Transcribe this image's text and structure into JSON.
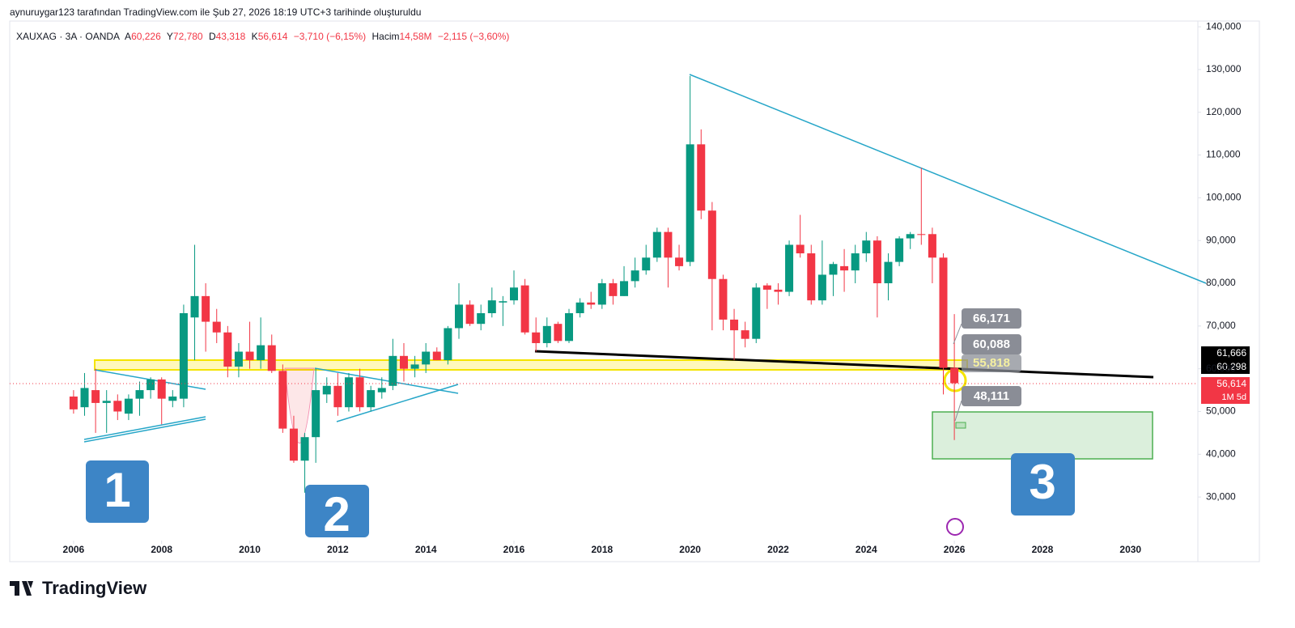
{
  "chart_data": {
    "type": "candlestick",
    "caption": "aynuruygar123 tarafından TradingView.com ile Şub 27, 2026 18:19 UTC+3 tarihinde oluşturuldu",
    "header": {
      "symbol": "XAUXAG · 3A · OANDA",
      "open_key": "A",
      "open": "60,226",
      "high_key": "Y",
      "high": "72,780",
      "low_key": "D",
      "low": "43,318",
      "close_key": "K",
      "close": "56,614",
      "change": "−3,710 (−6,15%)",
      "volume_key": "Hacim",
      "volume": "14,58M",
      "volume_change": "−2,115 (−3,60%)"
    },
    "x": [
      2006,
      2006.25,
      2006.5,
      2006.75,
      2007,
      2007.25,
      2007.5,
      2007.75,
      2008,
      2008.25,
      2008.5,
      2008.75,
      2009,
      2009.25,
      2009.5,
      2009.75,
      2010,
      2010.25,
      2010.5,
      2010.75,
      2011,
      2011.25,
      2011.5,
      2011.75,
      2012,
      2012.25,
      2012.5,
      2012.75,
      2013,
      2013.25,
      2013.5,
      2013.75,
      2014,
      2014.25,
      2014.5,
      2014.75,
      2015,
      2015.25,
      2015.5,
      2015.75,
      2016,
      2016.25,
      2016.5,
      2016.75,
      2017,
      2017.25,
      2017.5,
      2017.75,
      2018,
      2018.25,
      2018.5,
      2018.75,
      2019,
      2019.25,
      2019.5,
      2019.75,
      2020,
      2020.25,
      2020.5,
      2020.75,
      2021,
      2021.25,
      2021.5,
      2021.75,
      2022,
      2022.25,
      2022.5,
      2022.75,
      2023,
      2023.25,
      2023.5,
      2023.75,
      2024,
      2024.25,
      2024.5,
      2024.75,
      2025,
      2025.25,
      2025.5,
      2025.75,
      2026
    ],
    "open": [
      53.5,
      51,
      55,
      52,
      52.5,
      49.5,
      53,
      55,
      57.5,
      52.5,
      53,
      72,
      77,
      71,
      68.5,
      60.5,
      64,
      62,
      65.5,
      59.5,
      46,
      38.5,
      44,
      54,
      56,
      51,
      58,
      51,
      54.5,
      56,
      63,
      60,
      61,
      64,
      62,
      69.5,
      75,
      70.5,
      73,
      75.5,
      76,
      79.5,
      68.5,
      66,
      70.5,
      66.5,
      73,
      75.5,
      75,
      80,
      77,
      80.5,
      83,
      86,
      92,
      86,
      85,
      112.5,
      97,
      81,
      71.5,
      69,
      67,
      79.5,
      78.5,
      78,
      89,
      87,
      76,
      82,
      84,
      83,
      87,
      90,
      80,
      85,
      90.5,
      91.5,
      91.5,
      86,
      60.226
    ],
    "high": [
      55,
      59,
      60,
      55,
      54,
      54,
      57,
      58,
      58,
      55,
      75,
      89,
      80,
      74,
      70,
      66,
      71,
      72,
      68,
      61,
      49,
      45,
      60,
      58,
      59,
      59,
      60,
      56,
      58,
      67,
      66,
      63,
      66,
      65,
      70,
      80,
      76,
      75,
      79,
      77,
      83,
      81,
      72,
      72,
      71,
      74,
      76.5,
      78,
      81,
      81,
      84,
      86,
      89,
      93,
      93,
      89,
      128.5,
      116,
      99,
      82,
      74,
      71,
      80,
      80,
      80,
      90,
      96,
      89,
      90,
      85,
      88,
      89,
      92,
      91,
      87,
      91,
      92,
      107,
      93,
      87,
      72.78
    ],
    "low": [
      49.5,
      49,
      45,
      45,
      48,
      48,
      49,
      53,
      47,
      51,
      51,
      62,
      64,
      66,
      58,
      58,
      60,
      60,
      59,
      45,
      38,
      31,
      38,
      52,
      49,
      50,
      50,
      50,
      53,
      55,
      57,
      58,
      59,
      62,
      61,
      67,
      70,
      69,
      72,
      70,
      75,
      68,
      64,
      65,
      66,
      66,
      72,
      74,
      74,
      75,
      77,
      79,
      82,
      85,
      79,
      83,
      84,
      95,
      69,
      69,
      62,
      65,
      66,
      74,
      75,
      77,
      86,
      75,
      75,
      77,
      78,
      80,
      85,
      72,
      76,
      84,
      88,
      89,
      80,
      54,
      43.318
    ],
    "close": [
      50.5,
      55.5,
      52,
      52.5,
      50,
      53,
      55,
      57.5,
      53,
      53.5,
      73,
      77,
      71,
      68.5,
      60.5,
      64,
      62,
      65.5,
      59.5,
      46,
      38.5,
      44,
      55,
      56,
      51,
      58,
      51,
      55,
      55.5,
      63,
      60,
      61,
      64,
      62,
      69.5,
      75,
      70.5,
      73,
      76,
      75.8,
      79,
      68.5,
      66,
      70,
      66.5,
      73,
      75.5,
      75,
      80,
      77,
      80.5,
      83,
      86,
      92,
      86,
      84,
      112.5,
      97,
      81,
      71.5,
      69,
      67,
      79,
      78.5,
      78,
      89,
      87,
      76,
      82,
      84.5,
      83,
      87,
      90,
      80,
      85,
      90.5,
      91.5,
      91.3,
      86,
      60.2,
      56.614
    ],
    "up_color": "#089981",
    "down_color": "#f23645",
    "xlim": [
      2004.55,
      2031.53
    ],
    "xticks": [
      2006,
      2008,
      2010,
      2012,
      2014,
      2016,
      2018,
      2020,
      2022,
      2024,
      2026,
      2028,
      2030
    ],
    "ylim": [
      19.8,
      142.1
    ],
    "yticks": [
      {
        "value": 30,
        "label": "30,000"
      },
      {
        "value": 40,
        "label": "40,000"
      },
      {
        "value": 50,
        "label": "50,000"
      },
      {
        "value": 60,
        "label": "60,000"
      },
      {
        "value": 70,
        "label": "70,000"
      },
      {
        "value": 80,
        "label": "80,000"
      },
      {
        "value": 90,
        "label": "90,000"
      },
      {
        "value": 100,
        "label": "100,000"
      },
      {
        "value": 110,
        "label": "110,000"
      },
      {
        "value": 120,
        "label": "120,000"
      },
      {
        "value": 130,
        "label": "130,000"
      },
      {
        "value": 140,
        "label": "140,000"
      }
    ],
    "grid": false,
    "annotations": [
      "1",
      "2",
      "3"
    ],
    "price_labels": [
      "66,171",
      "60,088",
      "55,818",
      "48,111"
    ],
    "price_tags": [
      "61,666",
      "60,298",
      "56,614"
    ],
    "countdown": "1M 5d",
    "brand": "TradingView"
  }
}
